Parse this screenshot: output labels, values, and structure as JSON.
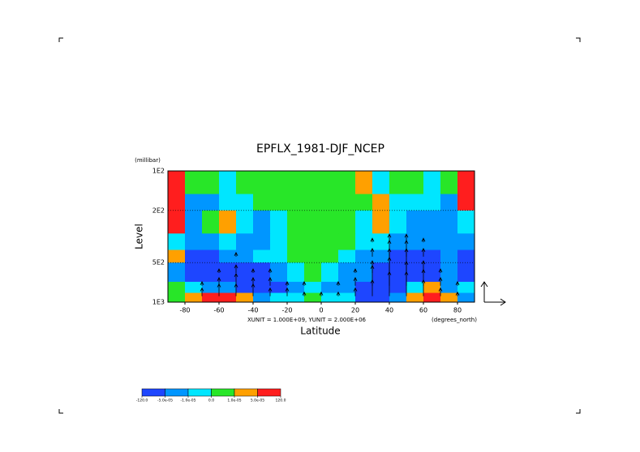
{
  "chart_data": {
    "type": "contour",
    "title": "EPFLX_1981-DJF_NCEP",
    "y_unit_label": "(millibar)",
    "y_label": "Level",
    "x_label": "Latitude",
    "x_unit_label": "(degrees_north)",
    "vector_note": "XUNIT = 1.000E+09, YUNIT = 2.000E+06",
    "xlim": [
      -90,
      90
    ],
    "xticks": [
      -80,
      -60,
      -40,
      -20,
      0,
      20,
      40,
      60,
      80
    ],
    "ylim": [
      1000,
      100
    ],
    "log_y": true,
    "yticks": [
      {
        "value": 100,
        "label": "1E2"
      },
      {
        "value": 200,
        "label": "2E2"
      },
      {
        "value": 500,
        "label": "5E2"
      },
      {
        "value": 1000,
        "label": "1E3"
      }
    ],
    "x_edges": [
      -90,
      -80,
      -70,
      -60,
      -50,
      -40,
      -30,
      -20,
      -10,
      0,
      10,
      20,
      30,
      40,
      50,
      60,
      70,
      80,
      90
    ],
    "p_edges": [
      100,
      150,
      200,
      300,
      400,
      500,
      700,
      850,
      1000
    ],
    "z": [
      [
        8e-05,
        5e-06,
        5e-06,
        -5e-06,
        5e-06,
        5e-06,
        5e-06,
        5e-06,
        5e-06,
        5e-06,
        5e-06,
        3e-05,
        -5e-06,
        5e-06,
        5e-06,
        -5e-06,
        5e-06,
        8e-05
      ],
      [
        8e-05,
        -3e-05,
        -3e-05,
        -5e-06,
        -5e-06,
        5e-06,
        5e-06,
        5e-06,
        5e-06,
        5e-06,
        5e-06,
        5e-06,
        3e-05,
        -5e-06,
        -5e-06,
        -5e-06,
        -3e-05,
        8e-05
      ],
      [
        8e-05,
        -3e-05,
        5e-06,
        3e-05,
        -5e-06,
        -3e-05,
        -5e-06,
        5e-06,
        5e-06,
        5e-06,
        5e-06,
        -5e-06,
        3e-05,
        -5e-06,
        -3e-05,
        -3e-05,
        -3e-05,
        -5e-06
      ],
      [
        -5e-06,
        -3e-05,
        -3e-05,
        -5e-06,
        -3e-05,
        -3e-05,
        -5e-06,
        5e-06,
        5e-06,
        5e-06,
        5e-06,
        -5e-06,
        -5e-06,
        -3e-05,
        -3e-05,
        -3e-05,
        -3e-05,
        -3e-05
      ],
      [
        3e-05,
        -8e-05,
        -8e-05,
        -3e-05,
        -3e-05,
        -5e-06,
        -5e-06,
        5e-06,
        5e-06,
        5e-06,
        -5e-06,
        -3e-05,
        -3e-05,
        -8e-05,
        -8e-05,
        -8e-05,
        -3e-05,
        -8e-05
      ],
      [
        -3e-05,
        -8e-05,
        -8e-05,
        -8e-05,
        -8e-05,
        -8e-05,
        -3e-05,
        -5e-06,
        5e-06,
        -5e-06,
        -3e-05,
        -3e-05,
        -8e-05,
        -8e-05,
        -8e-05,
        -8e-05,
        -3e-05,
        -8e-05
      ],
      [
        5e-06,
        -5e-06,
        -3e-05,
        -3e-05,
        -8e-05,
        -8e-05,
        -8e-05,
        -3e-05,
        -5e-06,
        -3e-05,
        -3e-05,
        -8e-05,
        -8e-05,
        -8e-05,
        -5e-06,
        3e-05,
        -3e-05,
        -5e-06
      ],
      [
        5e-06,
        3e-05,
        8e-05,
        8e-05,
        3e-05,
        -3e-05,
        -5e-06,
        -5e-06,
        5e-06,
        -5e-06,
        -5e-06,
        -8e-05,
        -8e-05,
        -3e-05,
        3e-05,
        8e-05,
        3e-05,
        -3e-05
      ]
    ],
    "levels": [
      {
        "value": -120,
        "label": "-120.0"
      },
      {
        "value": -5e-05,
        "label": "-5.0e-05"
      },
      {
        "value": -1e-05,
        "label": "-1.0e-05"
      },
      {
        "value": 0,
        "label": "0.0"
      },
      {
        "value": 1e-05,
        "label": "1.0e-05"
      },
      {
        "value": 5e-05,
        "label": "5.0e-05"
      },
      {
        "value": 120,
        "label": "120.0"
      }
    ],
    "colors": [
      "#1e46ff",
      "#0096ff",
      "#00e6ff",
      "#28e628",
      "#ffa000",
      "#ff1e1e"
    ],
    "vector_x": [
      -70,
      -60,
      -50,
      -40,
      -30,
      -20,
      -10,
      0,
      10,
      20,
      30,
      40,
      50,
      60,
      70,
      80
    ],
    "vector_p": [
      900,
      750,
      600,
      450,
      350
    ],
    "vector_v": [
      [
        1,
        1.5,
        1.5,
        1.5,
        1,
        1,
        0.5,
        0.5,
        0.5,
        1,
        2,
        3,
        3,
        2,
        1,
        0.5
      ],
      [
        0.5,
        1,
        1.5,
        1,
        1,
        0.5,
        0.5,
        0,
        0.5,
        1,
        2.5,
        3.5,
        3,
        2,
        1,
        0.5
      ],
      [
        0,
        0.5,
        1,
        0.5,
        0.5,
        0,
        0,
        0,
        0,
        0.5,
        1.5,
        3,
        3,
        1.5,
        0.5,
        0
      ],
      [
        0,
        0,
        0.5,
        0,
        0,
        0,
        0,
        0,
        0,
        0,
        1,
        2,
        2,
        1,
        0,
        0
      ],
      [
        0,
        0,
        0,
        0,
        0,
        0,
        0,
        0,
        0,
        0,
        0.5,
        1,
        1,
        0.5,
        0,
        0
      ]
    ]
  }
}
